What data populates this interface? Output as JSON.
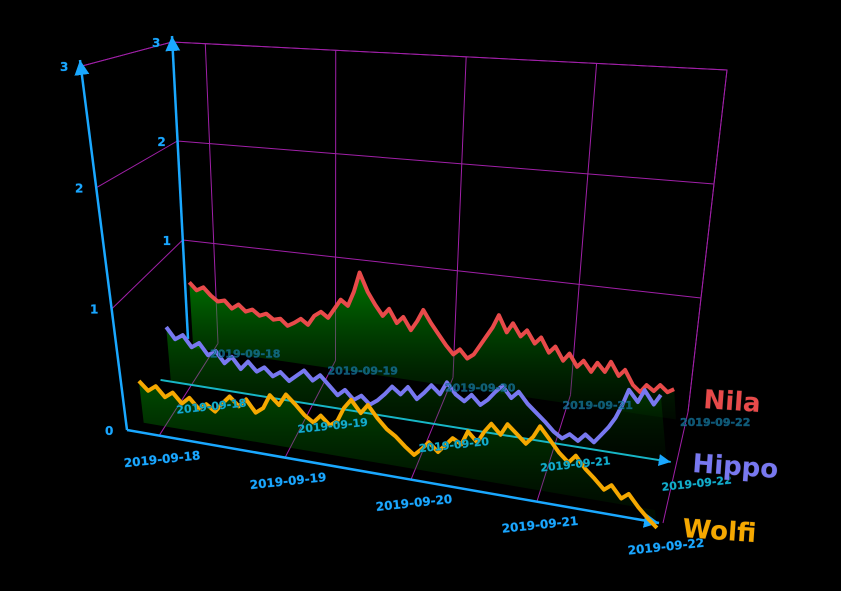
{
  "chart_data": {
    "type": "line",
    "view": "3d",
    "title": "",
    "xlabel": "",
    "ylabel": "",
    "x_ticks": [
      "2019-09-18",
      "2019-09-19",
      "2019-09-20",
      "2019-09-21",
      "2019-09-22"
    ],
    "mid_ticks": [
      "2019-09-18",
      "2019-09-19",
      "2019-09-20",
      "2019-09-21",
      "2019-09-22"
    ],
    "back_ticks": [
      "2019-09-18",
      "2019-09-19",
      "2019-09-20",
      "2019-09-21",
      "2019-09-22"
    ],
    "y_ticks": [
      "0",
      "1",
      "2",
      "3"
    ],
    "back_y_ticks": [
      "1",
      "2",
      "3"
    ],
    "ylim": [
      0,
      3
    ],
    "grid": true,
    "legend_position": "right",
    "series": [
      {
        "name": "Nila",
        "color": "#e84a4a",
        "values": [
          0.65,
          0.58,
          0.62,
          0.55,
          0.5,
          0.52,
          0.45,
          0.5,
          0.44,
          0.47,
          0.42,
          0.45,
          0.4,
          0.42,
          0.36,
          0.4,
          0.45,
          0.4,
          0.5,
          0.55,
          0.5,
          0.6,
          0.7,
          0.65,
          0.8,
          1.0,
          0.82,
          0.7,
          0.6,
          0.68,
          0.55,
          0.62,
          0.5,
          0.6,
          0.72,
          0.6,
          0.5,
          0.4,
          0.32,
          0.38,
          0.3,
          0.35,
          0.45,
          0.55,
          0.65,
          0.78,
          0.62,
          0.72,
          0.6,
          0.67,
          0.55,
          0.62,
          0.48,
          0.55,
          0.42,
          0.5,
          0.38,
          0.45,
          0.35,
          0.45,
          0.37,
          0.48,
          0.35,
          0.42,
          0.28,
          0.22,
          0.3,
          0.25,
          0.32,
          0.26,
          0.3
        ]
      },
      {
        "name": "Hippo",
        "color": "#7878f0",
        "values": [
          0.5,
          0.4,
          0.45,
          0.35,
          0.4,
          0.3,
          0.35,
          0.25,
          0.32,
          0.22,
          0.3,
          0.22,
          0.27,
          0.2,
          0.25,
          0.18,
          0.24,
          0.3,
          0.22,
          0.28,
          0.2,
          0.12,
          0.18,
          0.1,
          0.15,
          0.08,
          0.13,
          0.2,
          0.28,
          0.22,
          0.3,
          0.2,
          0.27,
          0.35,
          0.28,
          0.4,
          0.3,
          0.25,
          0.32,
          0.24,
          0.3,
          0.38,
          0.45,
          0.35,
          0.42,
          0.32,
          0.25,
          0.18,
          0.1,
          0.05,
          0.1,
          0.05,
          0.12,
          0.06,
          0.14,
          0.22,
          0.32,
          0.45,
          0.6,
          0.5,
          0.62,
          0.5,
          0.6
        ]
      },
      {
        "name": "Wolfi",
        "color": "#f5a800",
        "values": [
          0.35,
          0.28,
          0.33,
          0.25,
          0.3,
          0.22,
          0.28,
          0.2,
          0.25,
          0.2,
          0.28,
          0.35,
          0.28,
          0.35,
          0.25,
          0.3,
          0.42,
          0.35,
          0.45,
          0.38,
          0.3,
          0.25,
          0.32,
          0.25,
          0.3,
          0.42,
          0.5,
          0.4,
          0.48,
          0.38,
          0.3,
          0.25,
          0.18,
          0.12,
          0.18,
          0.25,
          0.18,
          0.25,
          0.32,
          0.28,
          0.4,
          0.32,
          0.42,
          0.5,
          0.42,
          0.52,
          0.45,
          0.38,
          0.45,
          0.55,
          0.45,
          0.35,
          0.28,
          0.35,
          0.25,
          0.18,
          0.1,
          0.15,
          0.05,
          0.1,
          0.0,
          -0.08,
          -0.15
        ]
      }
    ]
  }
}
